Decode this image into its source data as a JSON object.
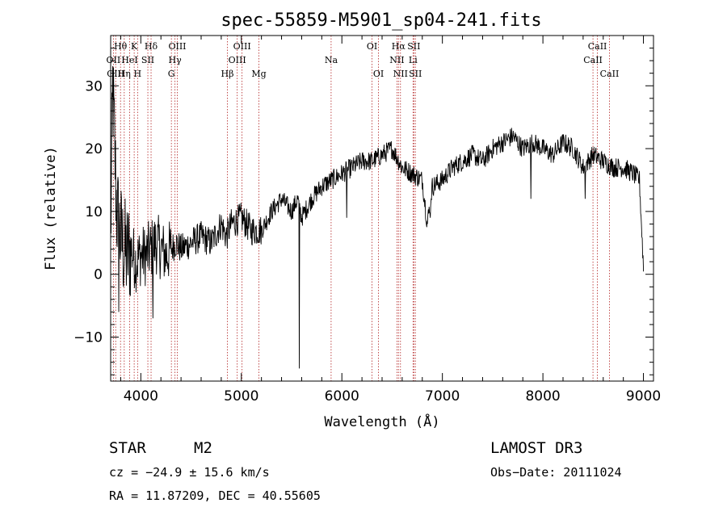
{
  "chart_data": {
    "type": "line",
    "title": "spec-55859-M5901_sp04-241.fits",
    "xlabel": "Wavelength (Å)",
    "ylabel": "Flux (relative)",
    "xlim": [
      3700,
      9100
    ],
    "ylim": [
      -17,
      38
    ],
    "xticks": [
      4000,
      5000,
      6000,
      7000,
      8000,
      9000
    ],
    "yticks": [
      -10,
      0,
      10,
      20,
      30
    ],
    "series": [
      {
        "name": "spectrum",
        "anchors_x": [
          3700,
          3720,
          3740,
          3760,
          3780,
          3800,
          3830,
          3860,
          3900,
          3950,
          4000,
          4050,
          4100,
          4150,
          4200,
          4250,
          4300,
          4350,
          4400,
          4500,
          4600,
          4700,
          4800,
          4850,
          4900,
          5000,
          5100,
          5200,
          5300,
          5400,
          5500,
          5560,
          5600,
          5700,
          5800,
          5900,
          6000,
          6100,
          6200,
          6300,
          6400,
          6500,
          6600,
          6700,
          6800,
          6850,
          6900,
          7000,
          7100,
          7200,
          7300,
          7400,
          7500,
          7600,
          7700,
          7800,
          7900,
          8000,
          8100,
          8200,
          8300,
          8400,
          8500,
          8600,
          8700,
          8800,
          8900,
          8960,
          9000
        ],
        "anchors_y": [
          5,
          30,
          20,
          10,
          8,
          6,
          4,
          3,
          4,
          2,
          3,
          3,
          4,
          5,
          4,
          3,
          4,
          5,
          4,
          5,
          6,
          5,
          8,
          6,
          8,
          9,
          7,
          7,
          10,
          12,
          10,
          12,
          9,
          12,
          14,
          15,
          16,
          17,
          18,
          18,
          19,
          20,
          17,
          16,
          15,
          8,
          14,
          15,
          17,
          18,
          19,
          18,
          20,
          21,
          22,
          20,
          21,
          20,
          19,
          21,
          20,
          17,
          19,
          18,
          17,
          17,
          16,
          15,
          1
        ]
      }
    ],
    "dips": [
      {
        "wavelength": 5577,
        "flux": -15
      },
      {
        "wavelength": 4120,
        "flux": -7
      },
      {
        "wavelength": 3780,
        "flux": -6
      },
      {
        "wavelength": 8420,
        "flux": 12
      },
      {
        "wavelength": 6880,
        "flux": 9
      },
      {
        "wavelength": 7880,
        "flux": 12
      },
      {
        "wavelength": 6050,
        "flux": 9
      }
    ],
    "spectral_lines": [
      {
        "label": "OII",
        "wl": 3727,
        "row": 2
      },
      {
        "label": "Hθ",
        "wl": 3798,
        "row": 1
      },
      {
        "label": "OIII",
        "wl": 3750,
        "row": 3
      },
      {
        "label": "HeI",
        "wl": 3889,
        "row": 2
      },
      {
        "label": "Hη",
        "wl": 3835,
        "row": 3
      },
      {
        "label": "K",
        "wl": 3934,
        "row": 1
      },
      {
        "label": "SII",
        "wl": 4070,
        "row": 2
      },
      {
        "label": "H",
        "wl": 3968,
        "row": 3
      },
      {
        "label": "Hδ",
        "wl": 4102,
        "row": 1
      },
      {
        "label": "OIII",
        "wl": 4363,
        "row": 1
      },
      {
        "label": "Hγ",
        "wl": 4340,
        "row": 2
      },
      {
        "label": "G",
        "wl": 4304,
        "row": 3
      },
      {
        "label": "OIII",
        "wl": 5007,
        "row": 1
      },
      {
        "label": "OIII",
        "wl": 4959,
        "row": 2
      },
      {
        "label": "Hβ",
        "wl": 4861,
        "row": 3
      },
      {
        "label": "Mg",
        "wl": 5175,
        "row": 3
      },
      {
        "label": "Na",
        "wl": 5893,
        "row": 2
      },
      {
        "label": "OI",
        "wl": 6300,
        "row": 1
      },
      {
        "label": "OI",
        "wl": 6364,
        "row": 3
      },
      {
        "label": "Hα",
        "wl": 6563,
        "row": 1
      },
      {
        "label": "SII",
        "wl": 6716,
        "row": 1
      },
      {
        "label": "NII",
        "wl": 6548,
        "row": 2
      },
      {
        "label": "Li",
        "wl": 6708,
        "row": 2
      },
      {
        "label": "NII",
        "wl": 6583,
        "row": 3
      },
      {
        "label": "SII",
        "wl": 6731,
        "row": 3
      },
      {
        "label": "CaII",
        "wl": 8542,
        "row": 1
      },
      {
        "label": "CaII",
        "wl": 8498,
        "row": 2
      },
      {
        "label": "CaII",
        "wl": 8662,
        "row": 3
      }
    ]
  },
  "info": {
    "object_class": "STAR",
    "subclass": "M2",
    "survey": "LAMOST DR3",
    "redshift": "cz = −24.9 ± 15.6 km/s",
    "obs_date": "Obs−Date: 20111024",
    "coords": "RA =  11.87209, DEC =  40.55605"
  },
  "colors": {
    "line_marker": "#b22222",
    "spectrum": "#000000",
    "axes": "#000000",
    "background": "#ffffff"
  }
}
